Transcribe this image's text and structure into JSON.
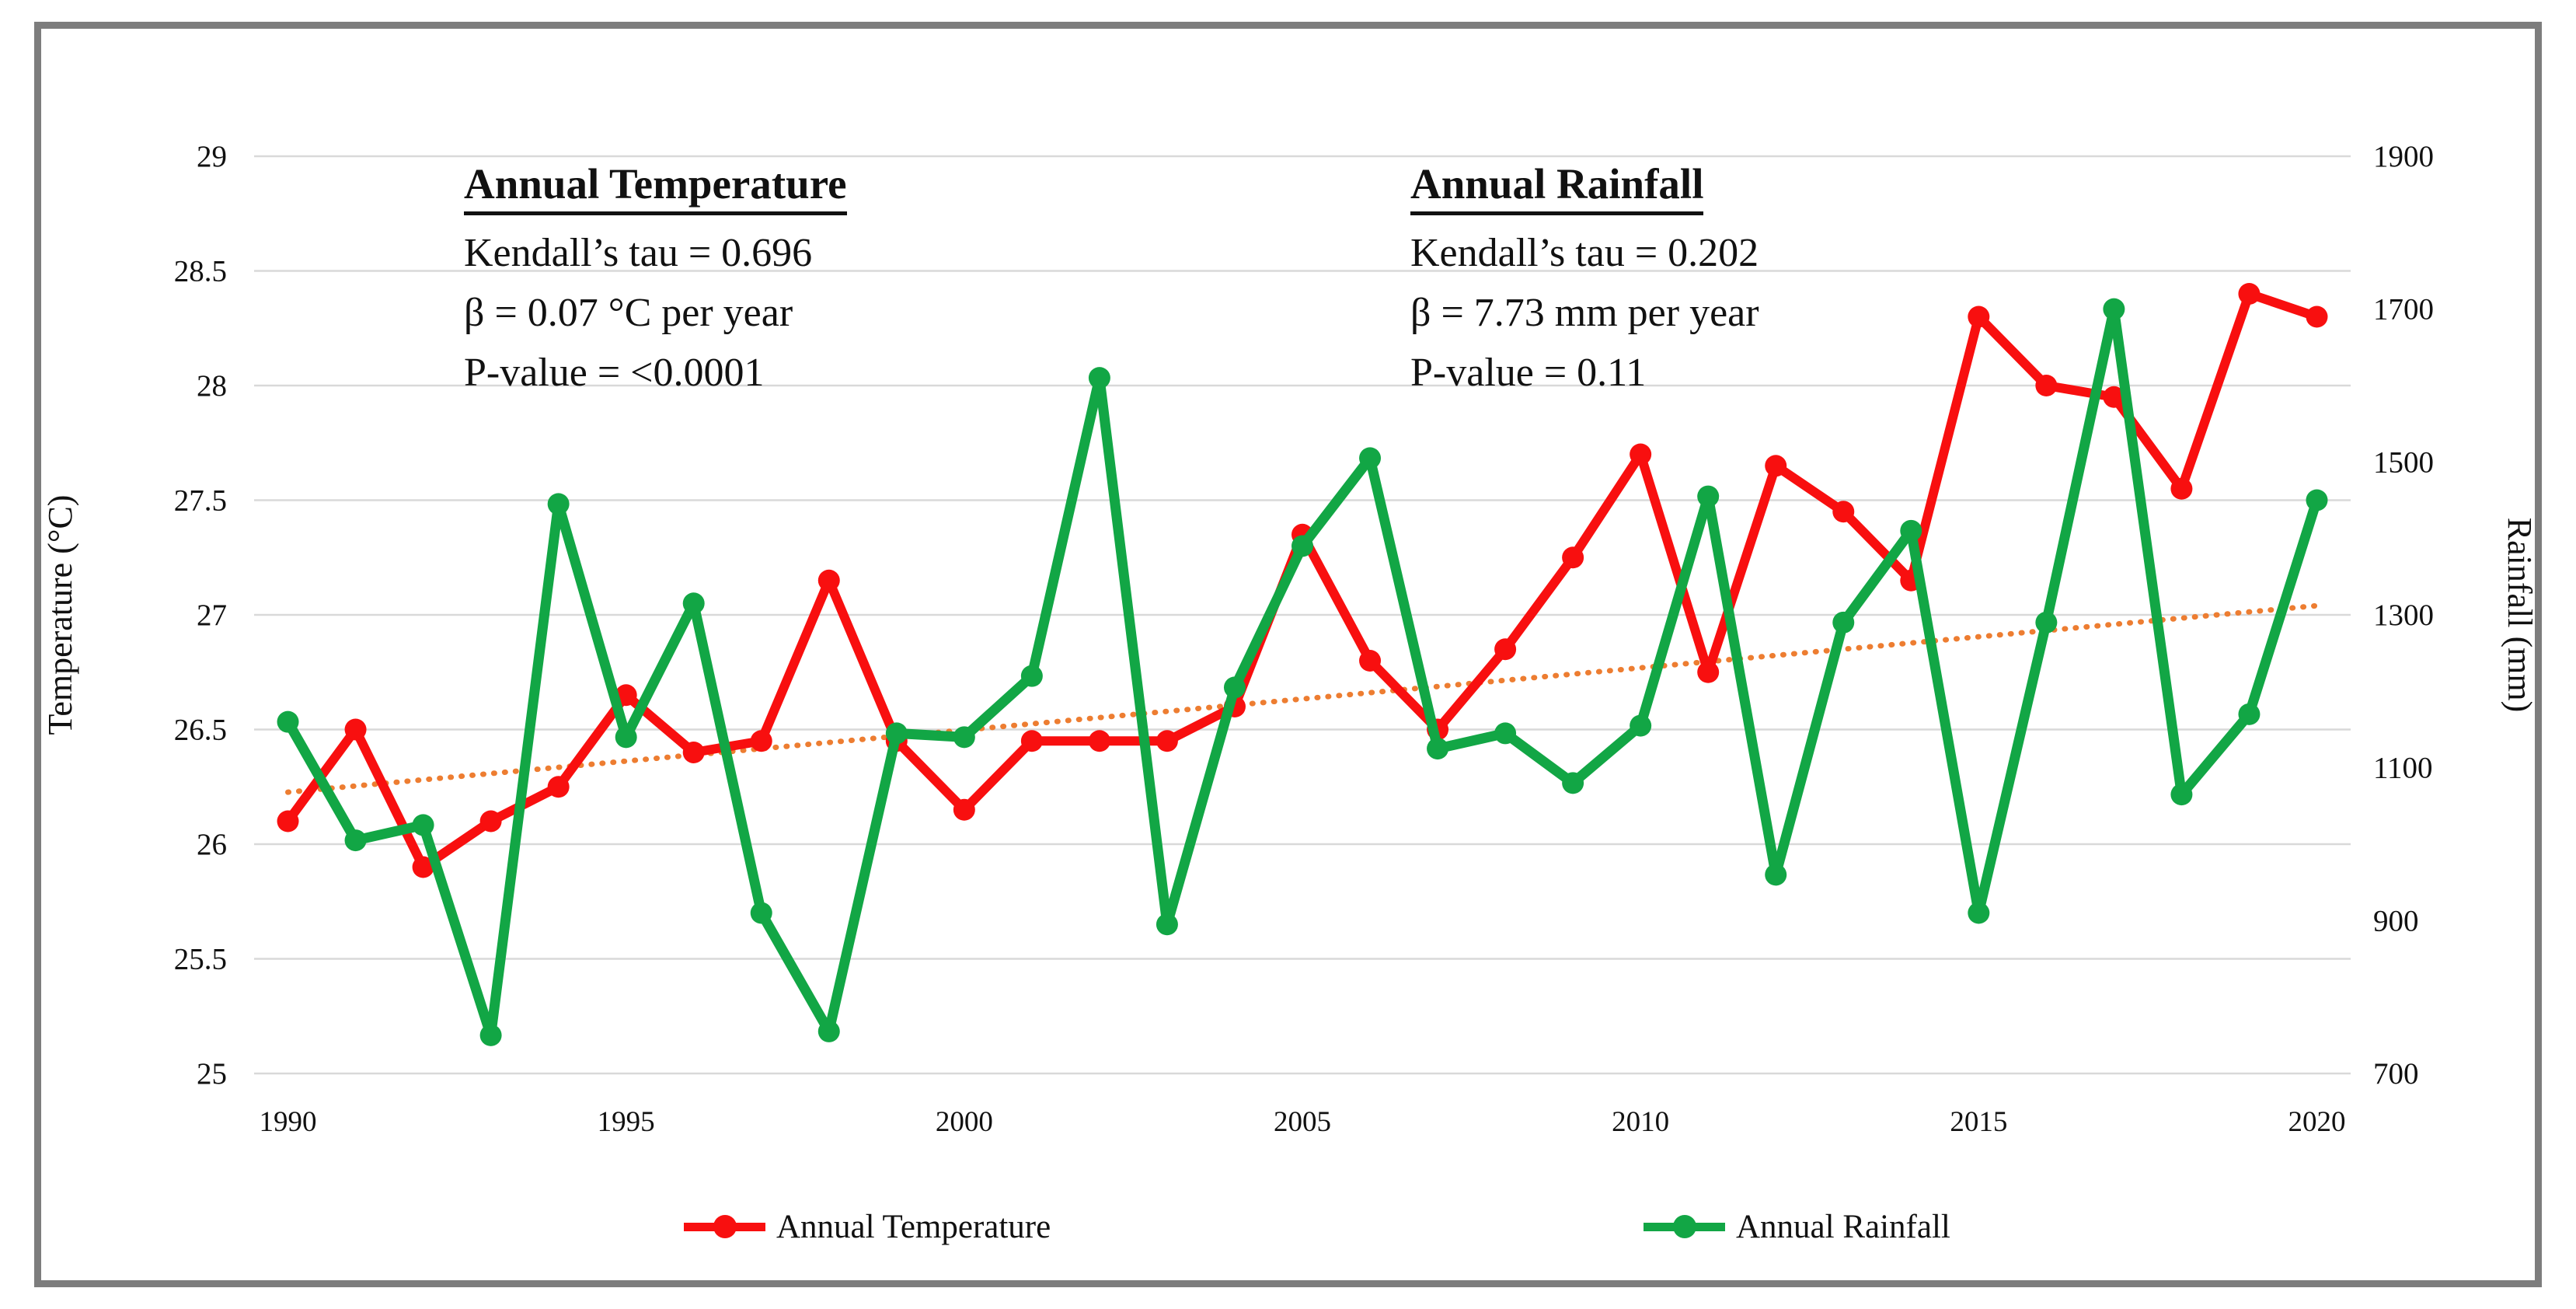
{
  "figure_type": "dual-axis line chart",
  "colors": {
    "temperature_series": "#F80F0F",
    "rainfall_series": "#12A645",
    "trendline": "#ED7D31",
    "gridline": "#D9D9D9",
    "frame_border": "#7D7D7D",
    "text": "#111111",
    "background": "#FFFFFF"
  },
  "annotations": {
    "temperature": {
      "title": "Annual Temperature",
      "lines": [
        "Kendall’s tau = 0.696",
        "β = 0.07 °C per year",
        "P-value = <0.0001"
      ]
    },
    "rainfall": {
      "title": "Annual Rainfall",
      "lines": [
        "Kendall’s tau = 0.202",
        "β = 7.73 mm per year",
        "P-value = 0.11"
      ]
    }
  },
  "legend": {
    "position": "bottom",
    "items": [
      {
        "label": "Annual Temperature",
        "color": "#F80F0F"
      },
      {
        "label": "Annual Rainfall",
        "color": "#12A645"
      }
    ]
  },
  "chart_data": {
    "type": "line",
    "title": "",
    "x": [
      1990,
      1991,
      1992,
      1993,
      1994,
      1995,
      1996,
      1997,
      1998,
      1999,
      2000,
      2001,
      2002,
      2003,
      2004,
      2005,
      2006,
      2007,
      2008,
      2009,
      2010,
      2011,
      2012,
      2013,
      2014,
      2015,
      2016,
      2017,
      2018,
      2019,
      2020
    ],
    "series": [
      {
        "name": "Annual Temperature",
        "axis": "left",
        "color": "#F80F0F",
        "values": [
          26.1,
          26.5,
          25.9,
          26.1,
          26.25,
          26.65,
          26.4,
          26.45,
          27.15,
          26.45,
          26.15,
          26.45,
          26.45,
          26.45,
          26.6,
          27.35,
          26.8,
          26.5,
          26.85,
          27.25,
          27.7,
          26.75,
          27.65,
          27.45,
          27.15,
          28.3,
          28.0,
          27.95,
          27.55,
          28.4,
          28.3
        ]
      },
      {
        "name": "Annual Rainfall",
        "axis": "right",
        "color": "#12A645",
        "values": [
          1160,
          1005,
          1025,
          750,
          1445,
          1140,
          1315,
          910,
          755,
          1145,
          1140,
          1220,
          1610,
          895,
          1205,
          1390,
          1505,
          1125,
          1145,
          1080,
          1155,
          1455,
          960,
          1290,
          1410,
          910,
          1290,
          1700,
          1065,
          1170,
          1450
        ]
      }
    ],
    "trendline": {
      "applies_to": "Annual Rainfall",
      "style": "dotted",
      "color": "#ED7D31",
      "start_value": 1068,
      "end_value": 1312
    },
    "left_axis": {
      "label": "Temperature (°C)",
      "min": 25,
      "max": 29,
      "step": 0.5,
      "ticks": [
        25,
        25.5,
        26,
        26.5,
        27,
        27.5,
        28,
        28.5,
        29
      ]
    },
    "right_axis": {
      "label": "Rainfall (mm)",
      "min": 700,
      "max": 1900,
      "step": 200,
      "ticks": [
        700,
        900,
        1100,
        1300,
        1500,
        1700,
        1900
      ]
    },
    "x_axis": {
      "tick_labels": [
        "1990",
        "1995",
        "2000",
        "2005",
        "2010",
        "2015",
        "2020"
      ]
    },
    "grid": true,
    "legend_position": "bottom"
  }
}
